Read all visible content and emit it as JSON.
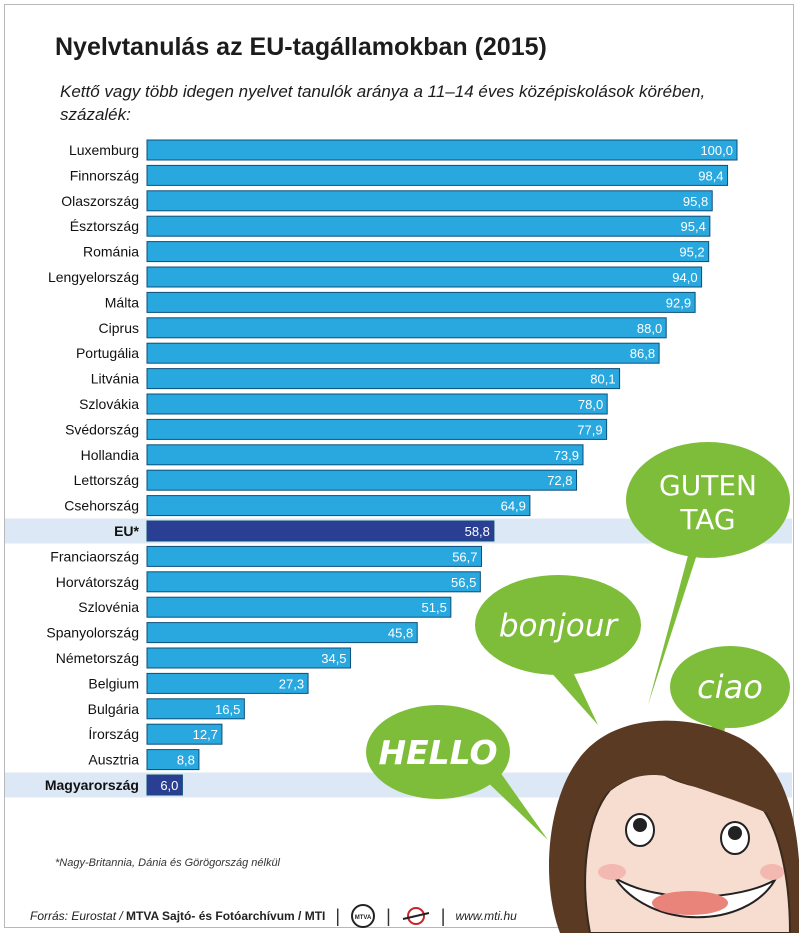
{
  "title": "Nyelvtanulás az EU-tagállamokban (2015)",
  "subtitle": "Kettő vagy több idegen nyelvet tanulók aránya a 11–14 éves középiskolások körében, százalék:",
  "footnote": "*Nagy-Britannia, Dánia és Görögország nélkül",
  "footer": {
    "source_prefix": "Forrás: Eurostat / ",
    "source_bold": "MTVA Sajtó- és Fotóarchívum / MTI",
    "logo1_text": "MTVA",
    "website": "www.mti.hu"
  },
  "speech_bubbles": [
    "GUTEN TAG",
    "bonjour",
    "ciao",
    "HELLO"
  ],
  "colors": {
    "bar": "#29a8e0",
    "bar_highlight": "#2a3f93",
    "highlight_band": "#dce8f6",
    "bubble_green": "#7ebd3a"
  },
  "chart_data": {
    "type": "bar",
    "orientation": "horizontal",
    "xlim": [
      0,
      100
    ],
    "categories": [
      "Luxemburg",
      "Finnország",
      "Olaszország",
      "Észtország",
      "Románia",
      "Lengyelország",
      "Málta",
      "Ciprus",
      "Portugália",
      "Litvánia",
      "Szlovákia",
      "Svédország",
      "Hollandia",
      "Lettország",
      "Csehország",
      "EU*",
      "Franciaország",
      "Horvátország",
      "Szlovénia",
      "Spanyolország",
      "Németország",
      "Belgium",
      "Bulgária",
      "Írország",
      "Ausztria",
      "Magyarország"
    ],
    "values": [
      100.0,
      98.4,
      95.8,
      95.4,
      95.2,
      94.0,
      92.9,
      88.0,
      86.8,
      80.1,
      78.0,
      77.9,
      73.9,
      72.8,
      64.9,
      58.8,
      56.7,
      56.5,
      51.5,
      45.8,
      34.5,
      27.3,
      16.5,
      12.7,
      8.8,
      6.0
    ],
    "value_labels": [
      "100,0",
      "98,4",
      "95,8",
      "95,4",
      "95,2",
      "94,0",
      "92,9",
      "88,0",
      "86,8",
      "80,1",
      "78,0",
      "77,9",
      "73,9",
      "72,8",
      "64,9",
      "58,8",
      "56,7",
      "56,5",
      "51,5",
      "45,8",
      "34,5",
      "27,3",
      "16,5",
      "12,7",
      "8,8",
      "6,0"
    ],
    "highlighted": [
      "EU*",
      "Magyarország"
    ]
  }
}
